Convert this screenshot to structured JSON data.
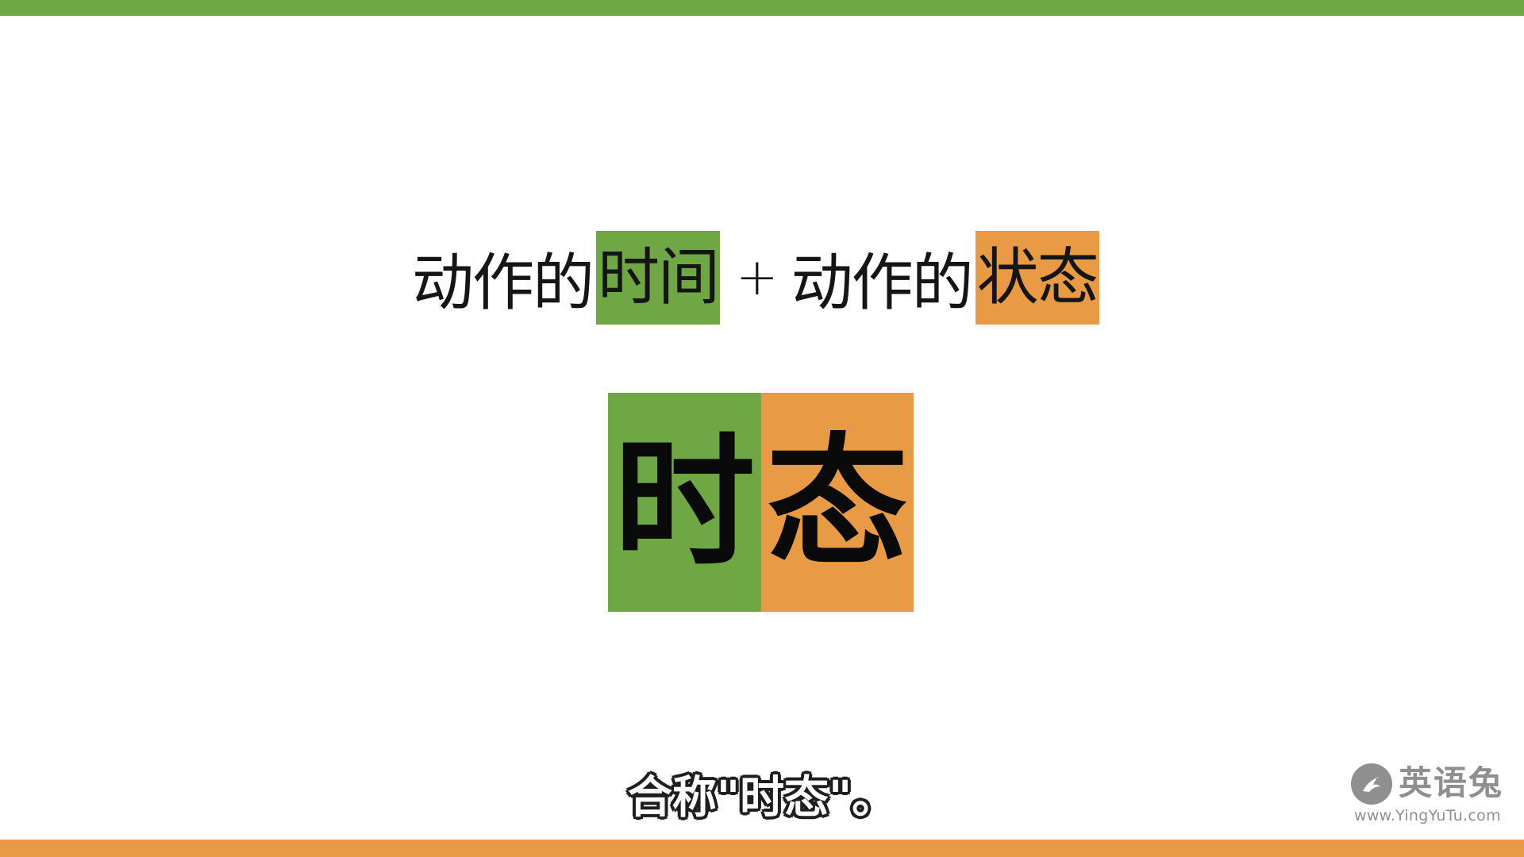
{
  "colors": {
    "green": "#6ea743",
    "orange": "#e89a44",
    "watermark_gray": "#8f8f8f"
  },
  "formula": {
    "part1_prefix": "动作的",
    "part1_highlight": "时间",
    "operator": "+",
    "part2_prefix": "动作的",
    "part2_highlight": "状态"
  },
  "term": {
    "left_char": "时",
    "right_char": "态"
  },
  "subtitle": "合称\"时态\"。",
  "watermark": {
    "logo_icon": "rabbit-logo-icon",
    "brand": "英语兔",
    "url": "www.YingYuTu.com"
  }
}
